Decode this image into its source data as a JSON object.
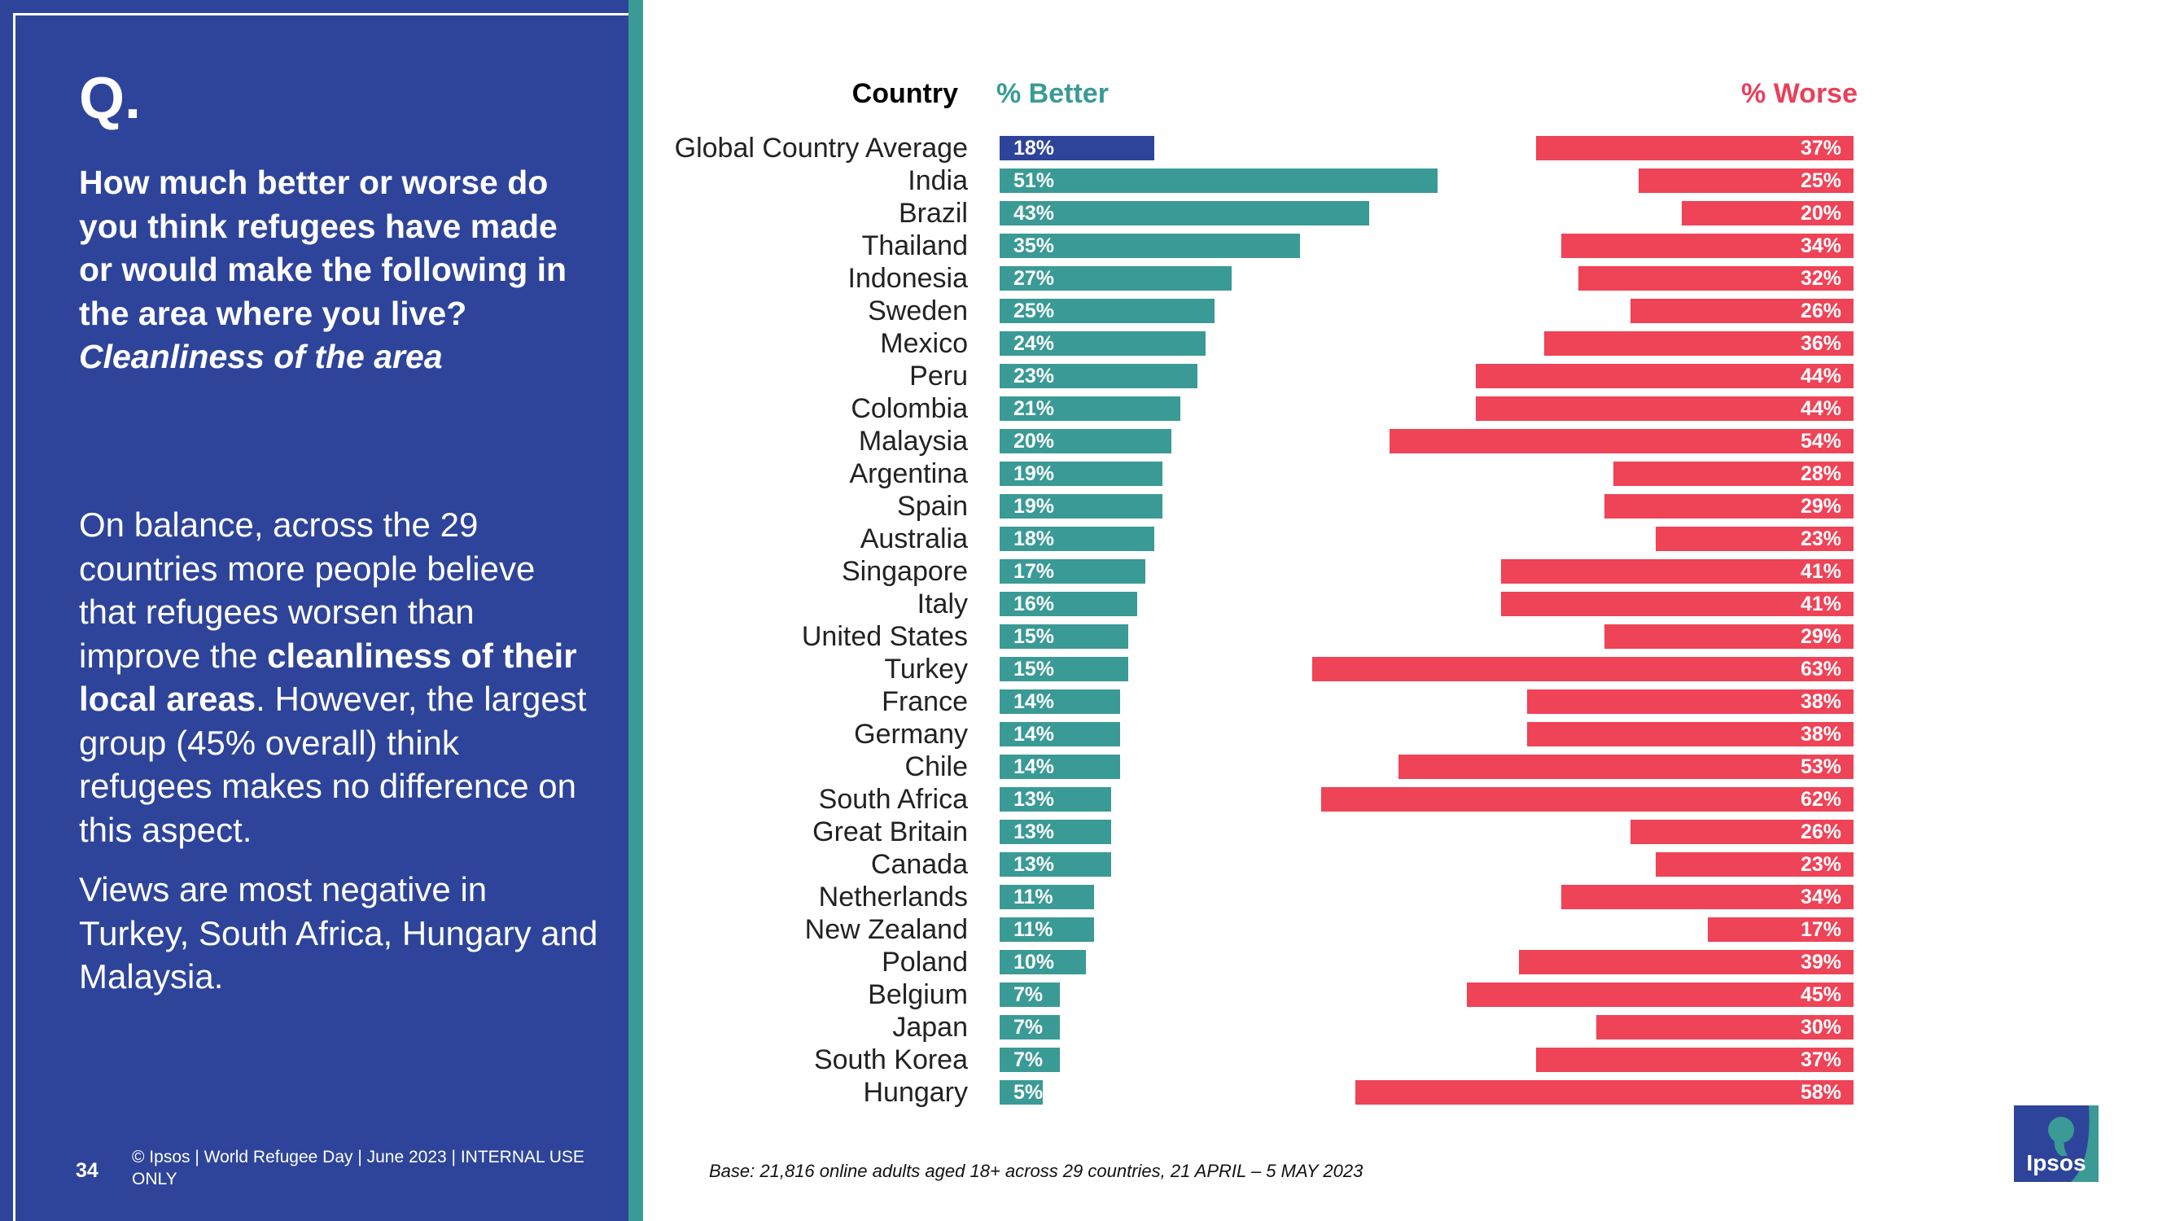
{
  "left_panel": {
    "q_label": "Q.",
    "question": "How much better or worse do you think refugees have made or would make the following in the area where you live?",
    "question_sub": "Cleanliness of the area",
    "para1_a": "On balance, across the 29 countries more people believe that refugees worsen than improve the ",
    "para1_b": "cleanliness of their local areas",
    "para1_c": ".  However, the largest group (45% overall) think refugees makes no difference on this aspect.",
    "para2": "Views are most negative in Turkey, South Africa, Hungary and Malaysia.",
    "page_number": "34",
    "copyright": "© Ipsos | World Refugee Day | June 2023 | INTERNAL USE ONLY"
  },
  "base_note": "Base: 21,816 online adults aged 18+ across 29 countries,  21 APRIL – 5 MAY 2023",
  "logo_text": "Ipsos",
  "colors": {
    "better": "#3a9a95",
    "worse": "#ef4357",
    "global": "#2e449a",
    "panel": "#2e449a"
  },
  "chart_data": {
    "type": "bar",
    "orientation": "horizontal",
    "headers": {
      "country": "Country",
      "better": "% Better",
      "worse": "% Worse"
    },
    "categories": [
      "Global Country Average",
      "India",
      "Brazil",
      "Thailand",
      "Indonesia",
      "Sweden",
      "Mexico",
      "Peru",
      "Colombia",
      "Malaysia",
      "Argentina",
      "Spain",
      "Australia",
      "Singapore",
      "Italy",
      "United States",
      "Turkey",
      "France",
      "Germany",
      "Chile",
      "South Africa",
      "Great Britain",
      "Canada",
      "Netherlands",
      "New Zealand",
      "Poland",
      "Belgium",
      "Japan",
      "South Korea",
      "Hungary"
    ],
    "series": [
      {
        "name": "% Better",
        "values": [
          18,
          51,
          43,
          35,
          27,
          25,
          24,
          23,
          21,
          20,
          19,
          19,
          18,
          17,
          16,
          15,
          15,
          14,
          14,
          14,
          13,
          13,
          13,
          11,
          11,
          10,
          7,
          7,
          7,
          5
        ]
      },
      {
        "name": "% Worse",
        "values": [
          37,
          25,
          20,
          34,
          32,
          26,
          36,
          44,
          44,
          54,
          28,
          29,
          23,
          41,
          41,
          29,
          63,
          38,
          38,
          53,
          62,
          26,
          23,
          34,
          17,
          39,
          45,
          30,
          37,
          58
        ]
      }
    ],
    "value_suffix": "%"
  }
}
